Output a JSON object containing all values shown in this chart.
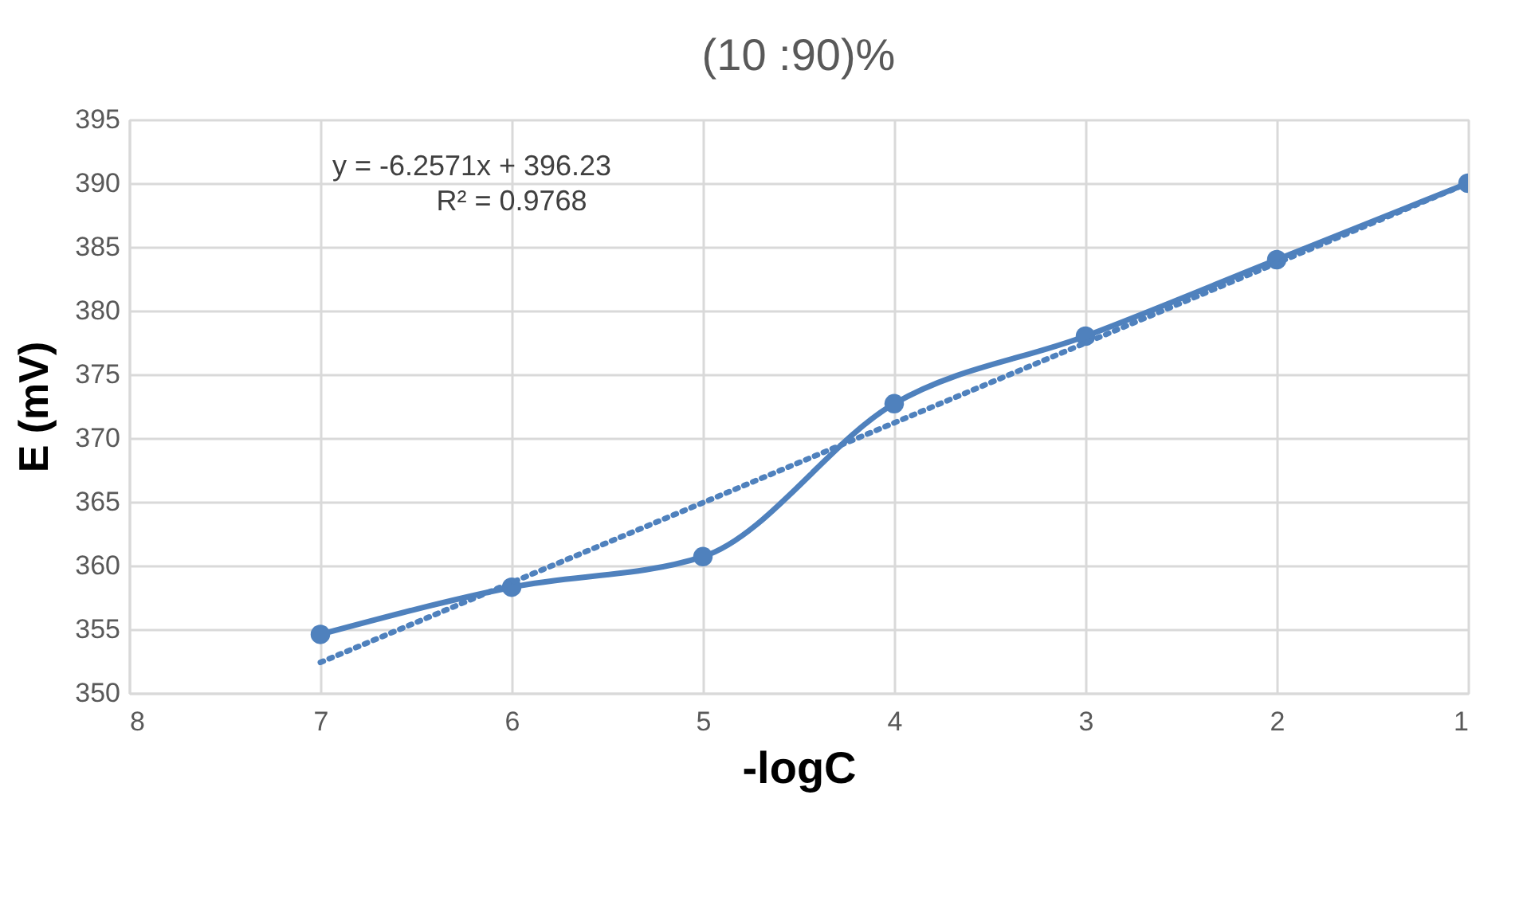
{
  "chart_data": {
    "type": "line",
    "title": "(10 :90)%",
    "xlabel": "-logC",
    "ylabel": "E (mV)",
    "xlim": [
      8,
      1
    ],
    "xticks": [
      8,
      7,
      6,
      5,
      4,
      3,
      2,
      1
    ],
    "ylim": [
      350,
      395
    ],
    "yticks": [
      350,
      355,
      360,
      365,
      370,
      375,
      380,
      385,
      390,
      395
    ],
    "grid": true,
    "legend": false,
    "annotations": [
      "y = -6.2571x + 396.23",
      "R² = 0.9768"
    ],
    "series": [
      {
        "color": "#4f81bd",
        "marker": "circle",
        "line_style": "solid",
        "x": [
          7,
          6,
          5,
          4,
          3,
          2,
          1
        ],
        "values": [
          354.6,
          358.3,
          360.7,
          372.7,
          378.0,
          384.0,
          390.0
        ]
      },
      {
        "color": "#4f81bd",
        "marker": "none",
        "line_style": "dotted",
        "x": [
          7,
          1
        ],
        "values": [
          352.4,
          390.0
        ]
      }
    ]
  }
}
